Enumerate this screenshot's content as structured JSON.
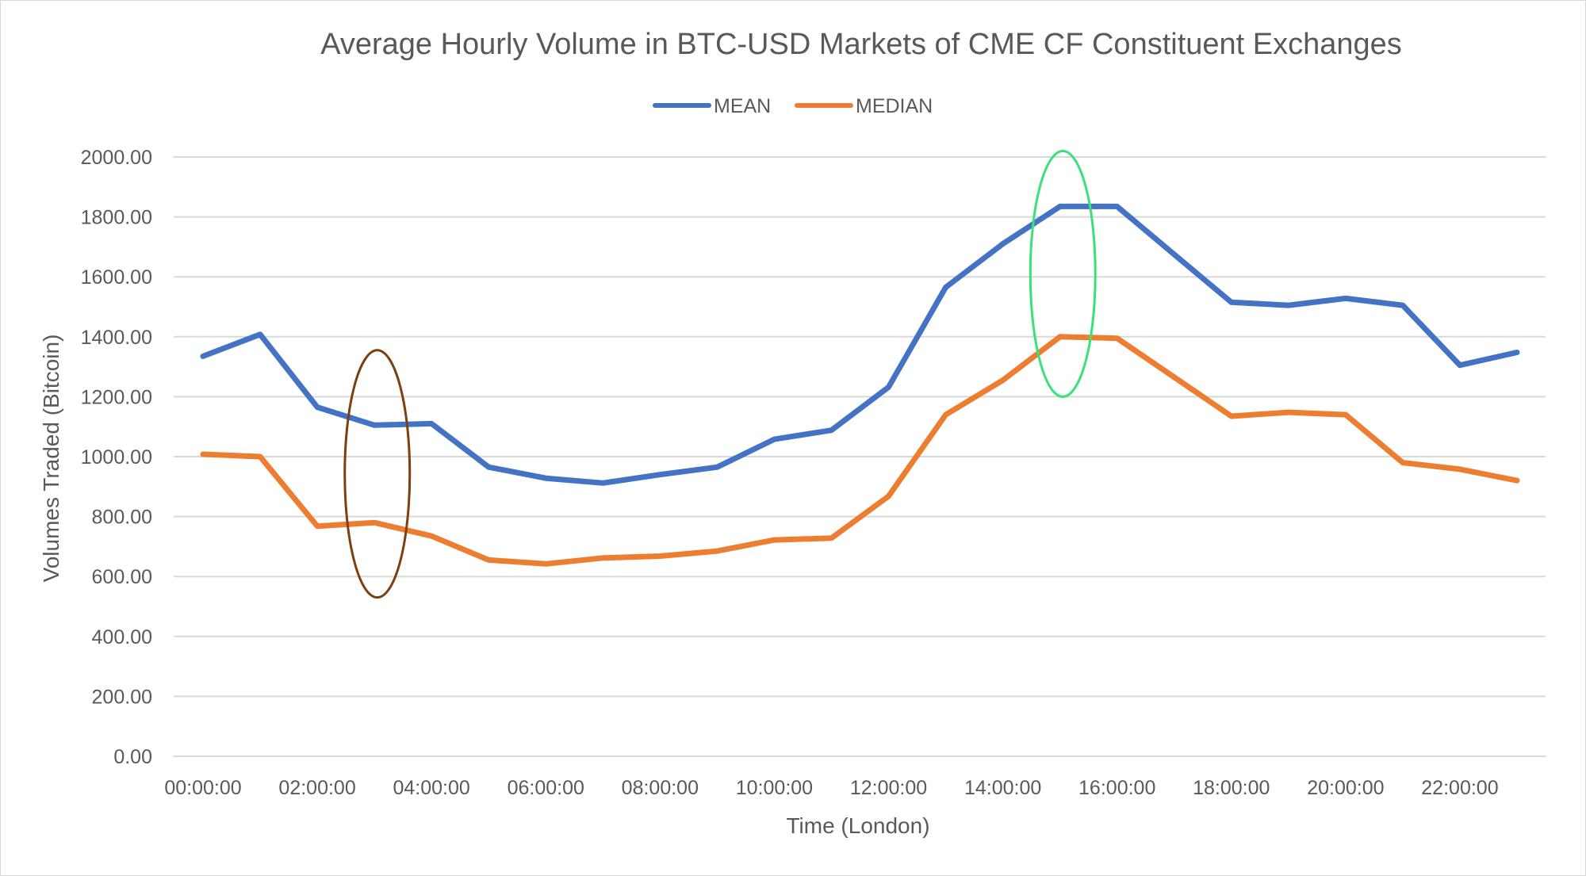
{
  "chart_data": {
    "type": "line",
    "title": "Average Hourly Volume in BTC-USD Markets of CME CF Constituent Exchanges",
    "xlabel": "Time (London)",
    "ylabel": "Volumes Traded (Bitcoin)",
    "ylim": [
      0,
      2000
    ],
    "yticks": [
      "0.00",
      "200.00",
      "400.00",
      "600.00",
      "800.00",
      "1000.00",
      "1200.00",
      "1400.00",
      "1600.00",
      "1800.00",
      "2000.00"
    ],
    "x": [
      "00:00:00",
      "01:00:00",
      "02:00:00",
      "03:00:00",
      "04:00:00",
      "05:00:00",
      "06:00:00",
      "07:00:00",
      "08:00:00",
      "09:00:00",
      "10:00:00",
      "11:00:00",
      "12:00:00",
      "13:00:00",
      "14:00:00",
      "15:00:00",
      "16:00:00",
      "17:00:00",
      "18:00:00",
      "19:00:00",
      "20:00:00",
      "21:00:00",
      "22:00:00",
      "23:00:00"
    ],
    "xtick_labels": [
      "00:00:00",
      "02:00:00",
      "04:00:00",
      "06:00:00",
      "08:00:00",
      "10:00:00",
      "12:00:00",
      "14:00:00",
      "16:00:00",
      "18:00:00",
      "20:00:00",
      "22:00:00"
    ],
    "grid": true,
    "legend_position": "top",
    "series": [
      {
        "name": "MEAN",
        "color": "#4472c4",
        "values": [
          1335,
          1408,
          1165,
          1105,
          1110,
          965,
          928,
          912,
          940,
          965,
          1058,
          1088,
          1232,
          1565,
          1710,
          1835,
          1835,
          1675,
          1515,
          1505,
          1528,
          1505,
          1305,
          1348
        ]
      },
      {
        "name": "MEDIAN",
        "color": "#ed7d31",
        "values": [
          1008,
          1000,
          768,
          780,
          735,
          655,
          642,
          662,
          668,
          685,
          722,
          728,
          868,
          1140,
          1255,
          1400,
          1395,
          1265,
          1135,
          1148,
          1140,
          980,
          958,
          920
        ]
      }
    ],
    "annotations": [
      {
        "shape": "ellipse",
        "color": "#7b3f10",
        "x": "03:00:00",
        "y_range": [
          530,
          1355
        ]
      },
      {
        "shape": "ellipse",
        "color": "#3ae07a",
        "x": "15:00:00",
        "y_range": [
          1200,
          2020
        ]
      }
    ]
  }
}
